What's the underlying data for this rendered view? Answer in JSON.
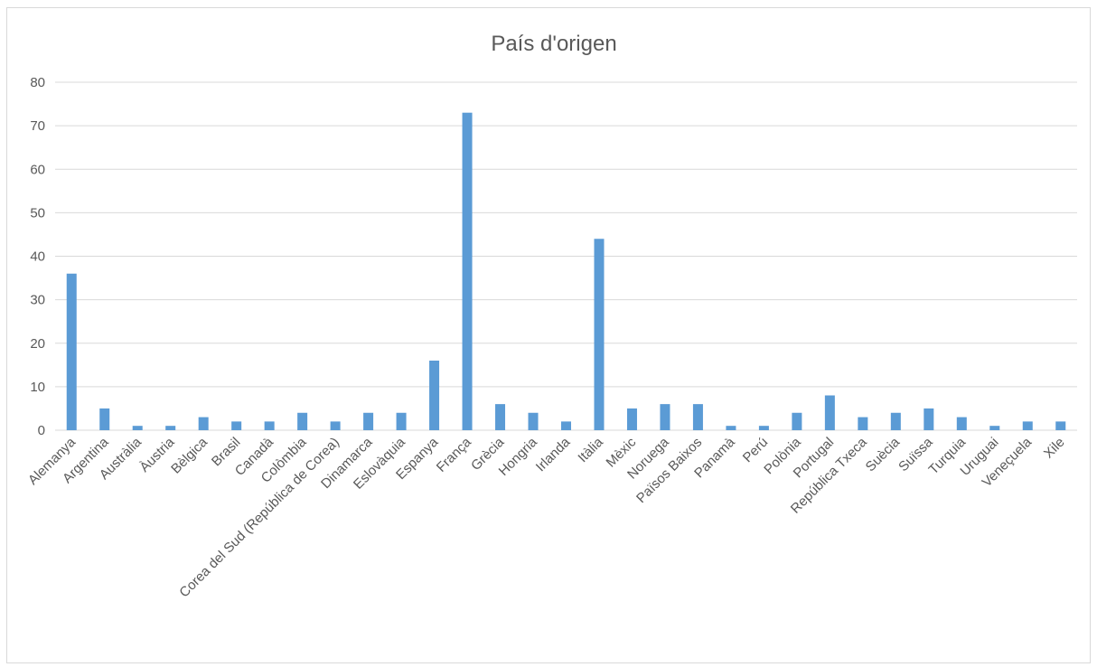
{
  "chart_data": {
    "type": "bar",
    "title": "País d'origen",
    "xlabel": "",
    "ylabel": "",
    "ylim": [
      0,
      80
    ],
    "yticks": [
      0,
      10,
      20,
      30,
      40,
      50,
      60,
      70,
      80
    ],
    "grid": true,
    "legend": "none",
    "bar_color": "#5b9bd5",
    "categories": [
      "Alemanya",
      "Argentina",
      "Austràlia",
      "Àustria",
      "Bèlgica",
      "Brasil",
      "Canadà",
      "Colòmbia",
      "Corea del Sud (República de Corea)",
      "Dinamarca",
      "Eslovàquia",
      "Espanya",
      "França",
      "Grècia",
      "Hongria",
      "Irlanda",
      "Itàlia",
      "Mèxic",
      "Noruega",
      "Països Baixos",
      "Panamà",
      "Perú",
      "Polònia",
      "Portugal",
      "República Txeca",
      "Suècia",
      "Suïssa",
      "Turquia",
      "Uruguai",
      "Veneçuela",
      "Xile"
    ],
    "values": [
      36,
      5,
      1,
      1,
      3,
      2,
      2,
      4,
      2,
      4,
      4,
      16,
      73,
      6,
      4,
      2,
      44,
      5,
      6,
      6,
      1,
      1,
      4,
      8,
      3,
      4,
      5,
      3,
      1,
      2,
      2
    ]
  }
}
